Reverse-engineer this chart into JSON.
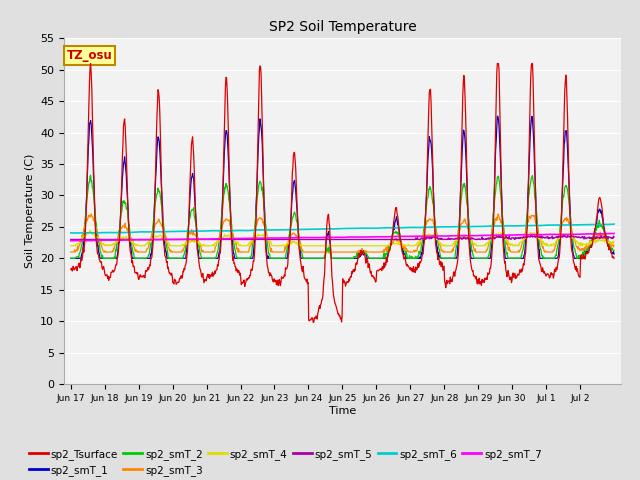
{
  "title": "SP2 Soil Temperature",
  "ylabel": "Soil Temperature (C)",
  "xlabel": "Time",
  "annotation": "TZ_osu",
  "annotation_color": "#cc0000",
  "annotation_bg": "#ffff99",
  "annotation_border": "#bb8800",
  "ylim": [
    0,
    55
  ],
  "yticks": [
    0,
    5,
    10,
    15,
    20,
    25,
    30,
    35,
    40,
    45,
    50,
    55
  ],
  "bg_color": "#e0e0e0",
  "plot_bg": "#f2f2f2",
  "series_colors": {
    "sp2_Tsurface": "#dd0000",
    "sp2_smT_1": "#0000cc",
    "sp2_smT_2": "#00cc00",
    "sp2_smT_3": "#ff8800",
    "sp2_smT_4": "#dddd00",
    "sp2_smT_5": "#aa00aa",
    "sp2_smT_6": "#00cccc",
    "sp2_smT_7": "#ff00ff"
  },
  "xtick_labels": [
    "Jun 17",
    "Jun 18",
    "Jun 19",
    "Jun 20",
    "Jun 21",
    "Jun 22",
    "Jun 23",
    "Jun 24",
    "Jun 25",
    "Jun 26",
    "Jun 27",
    "Jun 28",
    "Jun 29",
    "Jun 30",
    "Jul 1",
    "Jul 2"
  ],
  "n_points": 960
}
